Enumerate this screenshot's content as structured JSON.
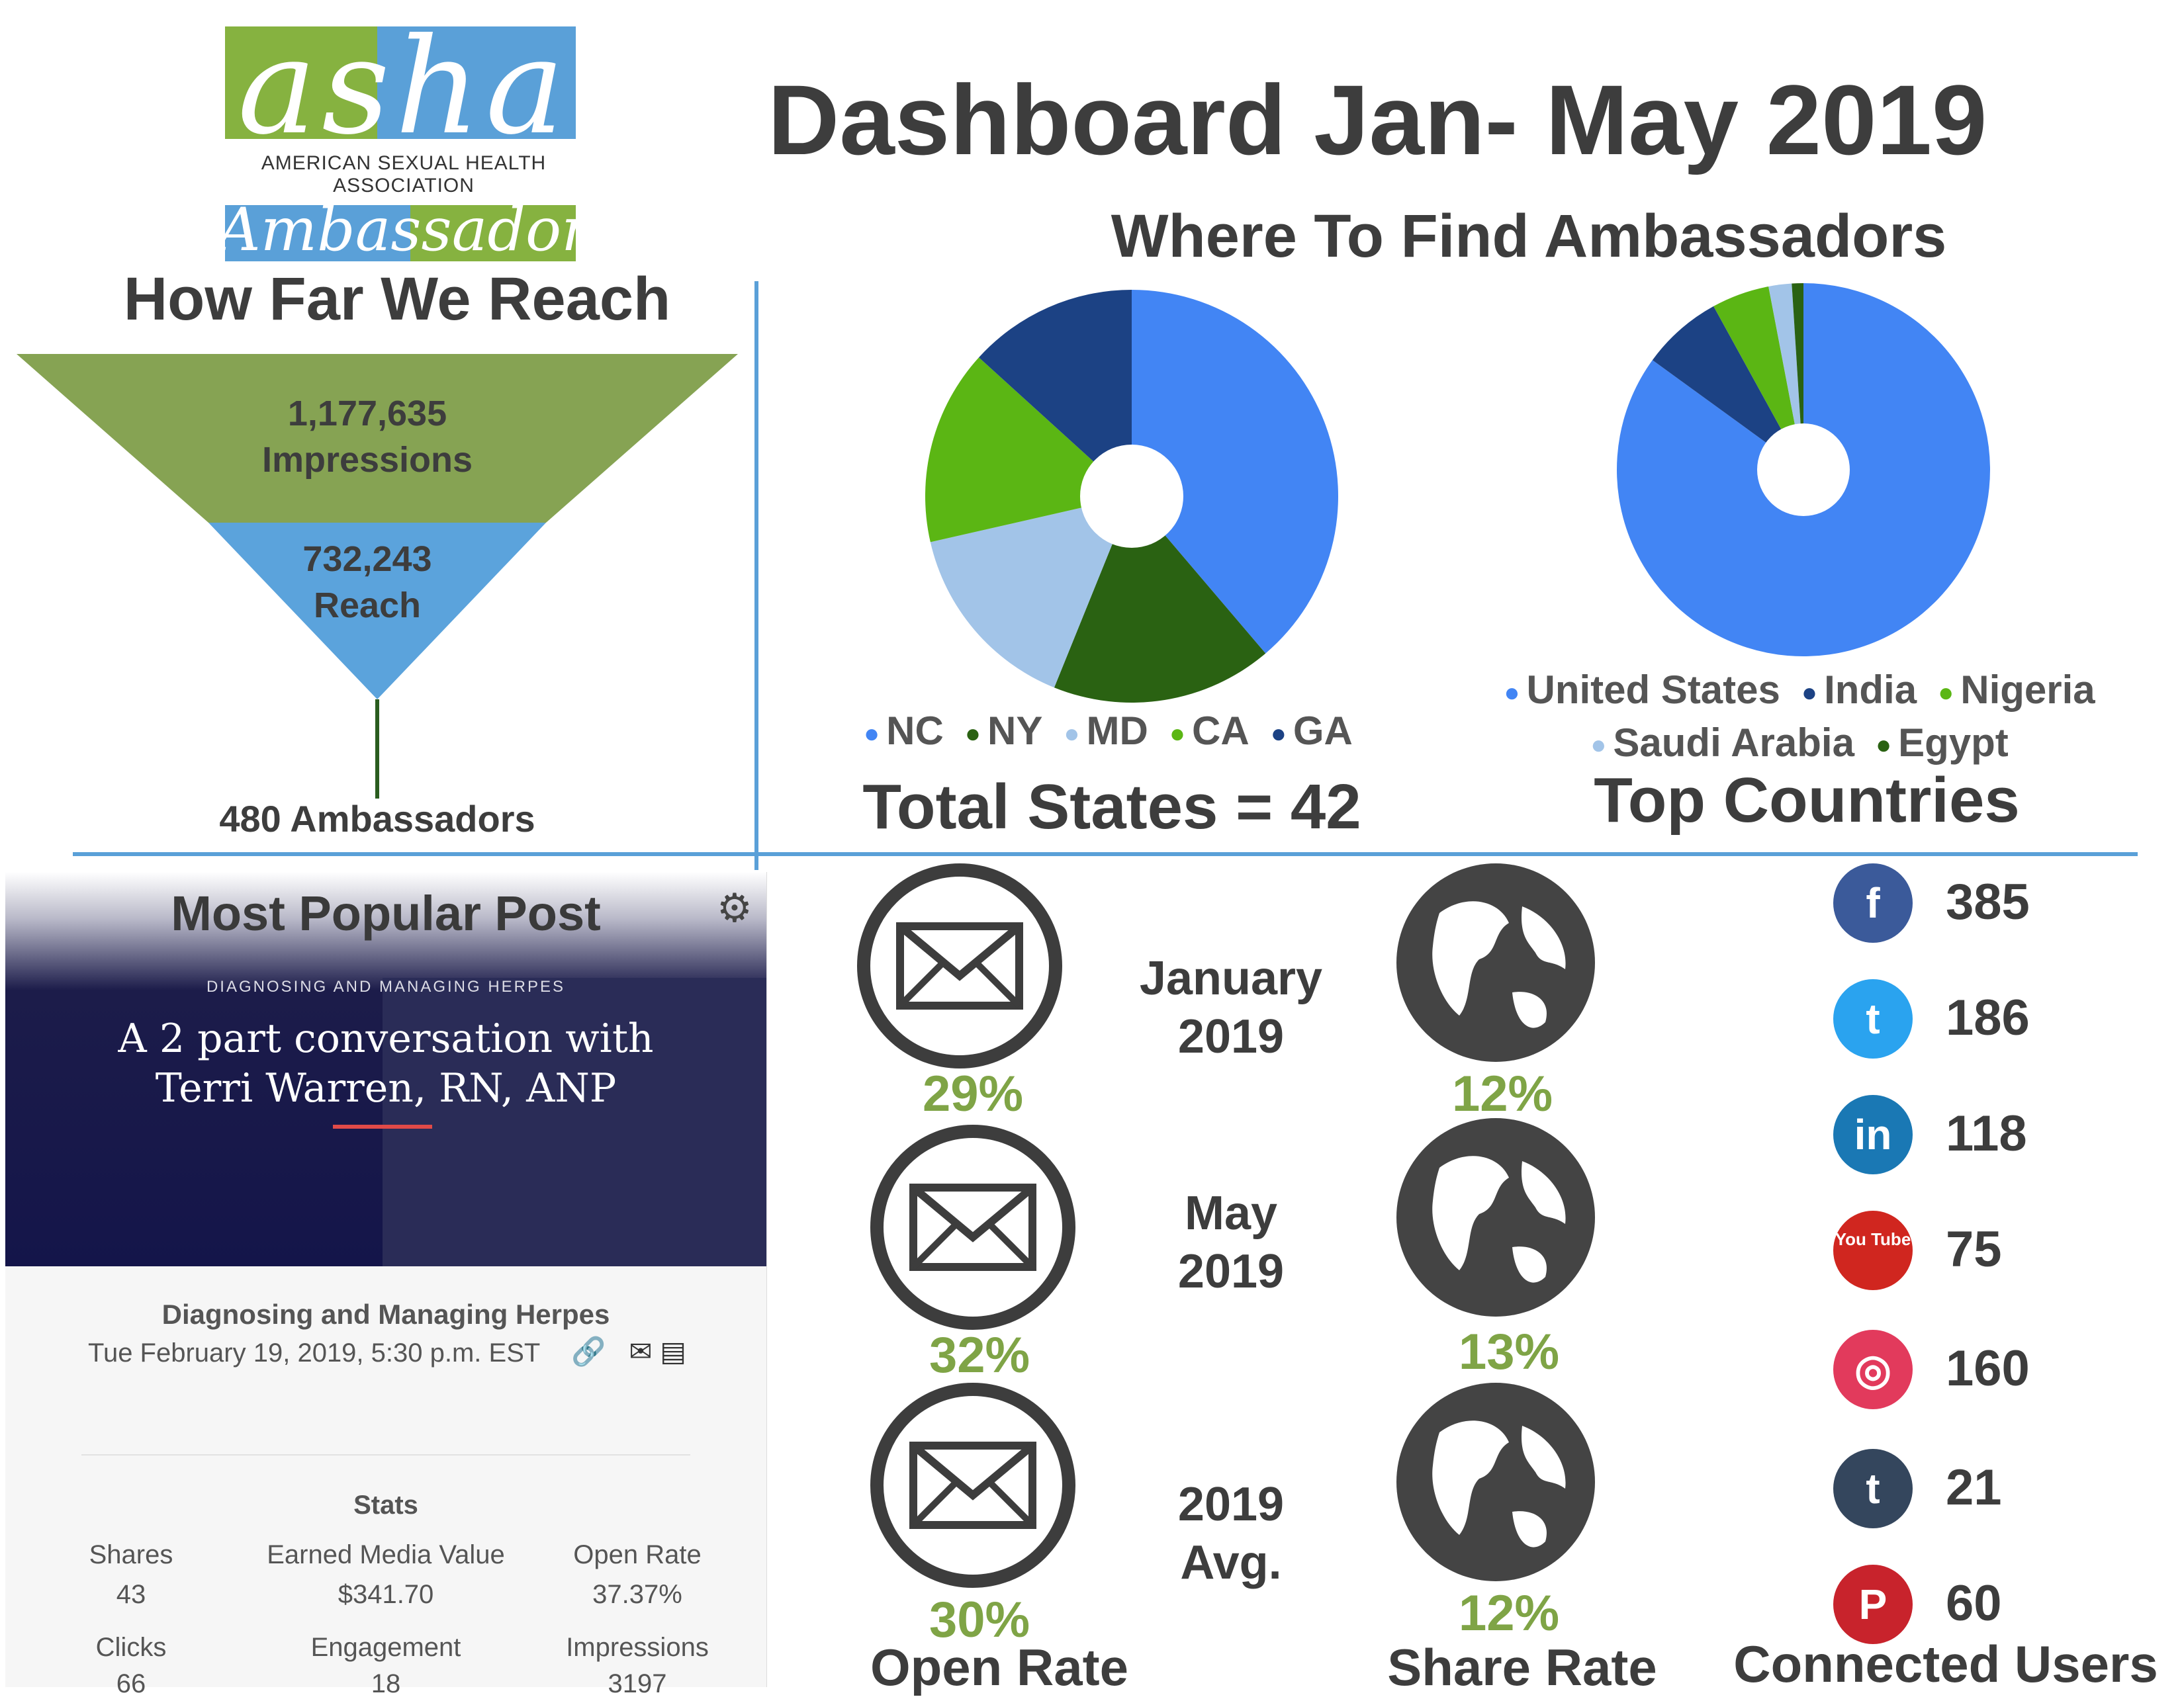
{
  "logo": {
    "wordmark": "asha",
    "subtitle": "AMERICAN SEXUAL HEALTH ASSOCIATION",
    "tagline": "Ambassador"
  },
  "title": "Dashboard Jan- May 2019",
  "reach": {
    "title": "How Far We Reach",
    "impressions_value": "1,177,635",
    "impressions_label": "Impressions",
    "reach_value": "732,243",
    "reach_label": "Reach",
    "ambassadors": "480 Ambassadors",
    "colors": {
      "impressions": "#86a353",
      "reach": "#5ba3dc",
      "stem": "#2a5d1f"
    }
  },
  "find": {
    "title": "Where To Find Ambassadors"
  },
  "chart_data": [
    {
      "type": "pie",
      "categories": [
        "NC",
        "NY",
        "MD",
        "CA",
        "GA"
      ],
      "values": [
        38,
        17,
        15,
        15,
        13
      ],
      "colors": [
        "#4285f4",
        "#2a6212",
        "#a2c4e8",
        "#5bb614",
        "#1c4284"
      ],
      "caption": "Total States = 42"
    },
    {
      "type": "pie",
      "categories": [
        "United States",
        "India",
        "Nigeria",
        "Saudi Arabia",
        "Egypt"
      ],
      "values": [
        85,
        7,
        5,
        2,
        1
      ],
      "colors": [
        "#4285f4",
        "#1c4284",
        "#5bb614",
        "#a2c4e8",
        "#2a6212"
      ],
      "caption": "Top Countries"
    }
  ],
  "post": {
    "title": "Most Popular Post",
    "kicker": "DIAGNOSING AND MANAGING HERPES",
    "headline_line1": "A 2 part conversation with",
    "headline_line2": "Terri Warren, RN, ANP",
    "name": "Diagnosing and Managing Herpes",
    "date": "Tue February 19, 2019, 5:30 p.m. EST",
    "stats_heading": "Stats",
    "stats": [
      {
        "label": "Shares",
        "value": "43"
      },
      {
        "label": "Earned Media Value",
        "value": "$341.70"
      },
      {
        "label": "Open Rate",
        "value": "37.37%"
      },
      {
        "label": "Clicks",
        "value": "66"
      },
      {
        "label": "Engagement",
        "value": "18"
      },
      {
        "label": "Impressions",
        "value": "3197"
      }
    ]
  },
  "metrics": {
    "periods": [
      {
        "label_line1": "January",
        "label_line2": "2019",
        "open_rate": "29%",
        "share_rate": "12%"
      },
      {
        "label_line1": "May",
        "label_line2": "2019",
        "open_rate": "32%",
        "share_rate": "13%"
      },
      {
        "label_line1": "2019",
        "label_line2": "Avg.",
        "open_rate": "30%",
        "share_rate": "12%"
      }
    ],
    "open_rate_label": "Open Rate",
    "share_rate_label": "Share Rate"
  },
  "social": {
    "label": "Connected Users",
    "items": [
      {
        "network": "facebook-icon",
        "glyph": "f",
        "count": "385",
        "color": "#3b5a9a"
      },
      {
        "network": "twitter-icon",
        "glyph": "t",
        "count": "186",
        "color": "#2aa3ef"
      },
      {
        "network": "linkedin-icon",
        "glyph": "in",
        "count": "118",
        "color": "#1a78b4"
      },
      {
        "network": "youtube-icon",
        "glyph": "You Tube",
        "count": "75",
        "color": "#d0261f"
      },
      {
        "network": "instagram-icon",
        "glyph": "◎",
        "count": "160",
        "color": "#e23a5c"
      },
      {
        "network": "tumblr-icon",
        "glyph": "t",
        "count": "21",
        "color": "#34465d"
      },
      {
        "network": "pinterest-icon",
        "glyph": "P",
        "count": "60",
        "color": "#c8232c"
      }
    ]
  }
}
